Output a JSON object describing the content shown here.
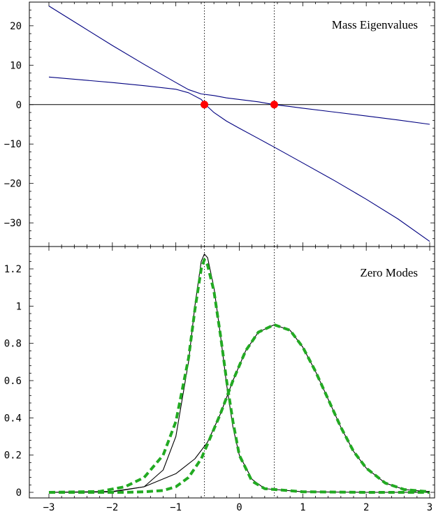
{
  "chart_data": [
    {
      "type": "line",
      "title": "Mass Eigenvalues",
      "xlim": [
        -3,
        3
      ],
      "ylim": [
        -36,
        26
      ],
      "x_ticks": [
        "−3",
        "−2",
        "−1",
        "0",
        "1",
        "2",
        "3"
      ],
      "y_ticks": [
        {
          "value": 20,
          "label": "20"
        },
        {
          "value": 10,
          "label": "10"
        },
        {
          "value": 0,
          "label": "0"
        },
        {
          "value": -10,
          "label": "−10"
        },
        {
          "value": -20,
          "label": "−20"
        },
        {
          "value": -30,
          "label": "−30"
        }
      ],
      "vertical_reference_lines": [
        -0.55,
        0.55
      ],
      "zero_line": true,
      "series": [
        {
          "color": "#000080",
          "x": [
            -3,
            -2,
            -1.5,
            -1,
            -0.8,
            -0.6,
            -0.5,
            -0.4,
            -0.2,
            0,
            0.3,
            0.55,
            1,
            1.5,
            2,
            2.5,
            3
          ],
          "values": [
            7,
            5.6,
            4.8,
            3.9,
            3.0,
            1.3,
            -0.5,
            -2.0,
            -4.2,
            -6.0,
            -8.6,
            -10.8,
            -14.8,
            -19.3,
            -24,
            -29,
            -34.7
          ]
        },
        {
          "color": "#000080",
          "x": [
            -3,
            -2.5,
            -2,
            -1.5,
            -1,
            -0.8,
            -0.6,
            -0.4,
            -0.2,
            0,
            0.3,
            0.55,
            0.8,
            1,
            1.5,
            2,
            2.5,
            3
          ],
          "values": [
            25,
            20,
            15,
            10.2,
            5.6,
            3.8,
            2.7,
            2.3,
            1.7,
            1.3,
            0.7,
            0,
            -0.5,
            -0.9,
            -1.9,
            -2.9,
            -3.9,
            -5
          ]
        }
      ],
      "markers": [
        {
          "x": -0.55,
          "y": 0,
          "color": "#ff0000"
        },
        {
          "x": 0.55,
          "y": 0,
          "color": "#ff0000"
        }
      ]
    },
    {
      "type": "line",
      "title": "Zero  Modes",
      "xlim": [
        -3,
        3
      ],
      "ylim": [
        -0.03,
        1.32
      ],
      "x_ticks": [
        "−3",
        "−2",
        "−1",
        "0",
        "1",
        "2",
        "3"
      ],
      "y_ticks": [
        {
          "value": 1.2,
          "label": "1.2"
        },
        {
          "value": 1.0,
          "label": "1"
        },
        {
          "value": 0.8,
          "label": "0.8"
        },
        {
          "value": 0.6,
          "label": "0.6"
        },
        {
          "value": 0.4,
          "label": "0.4"
        },
        {
          "value": 0.2,
          "label": "0.2"
        },
        {
          "value": 0.0,
          "label": "0"
        }
      ],
      "vertical_reference_lines": [
        -0.55,
        0.55
      ],
      "series": [
        {
          "style": "solid",
          "color": "#000000",
          "x": [
            -3,
            -2,
            -1.5,
            -1.2,
            -1,
            -0.8,
            -0.7,
            -0.6,
            -0.55,
            -0.5,
            -0.4,
            -0.3,
            -0.2,
            -0.1,
            0,
            0.2,
            0.4,
            1,
            2,
            3
          ],
          "values": [
            0,
            0.002,
            0.03,
            0.12,
            0.3,
            0.7,
            1.0,
            1.24,
            1.28,
            1.26,
            1.1,
            0.85,
            0.58,
            0.35,
            0.2,
            0.07,
            0.02,
            0.003,
            0,
            0
          ]
        },
        {
          "style": "dashed",
          "color": "#22aa22",
          "x": [
            -3,
            -2.2,
            -1.8,
            -1.5,
            -1.2,
            -1.0,
            -0.8,
            -0.7,
            -0.6,
            -0.55,
            -0.5,
            -0.4,
            -0.3,
            -0.2,
            -0.1,
            0,
            0.2,
            0.4,
            1,
            2,
            3
          ],
          "values": [
            0,
            0.005,
            0.03,
            0.08,
            0.2,
            0.38,
            0.72,
            0.98,
            1.2,
            1.25,
            1.22,
            1.08,
            0.85,
            0.6,
            0.38,
            0.2,
            0.06,
            0.02,
            0.003,
            0,
            0
          ]
        },
        {
          "style": "solid",
          "color": "#000000",
          "x": [
            -3,
            -2,
            -1.5,
            -1,
            -0.7,
            -0.5,
            -0.3,
            -0.1,
            0.1,
            0.3,
            0.55,
            0.8,
            1.0,
            1.2,
            1.4,
            1.6,
            1.8,
            2.0,
            2.3,
            2.6,
            3
          ],
          "values": [
            0,
            0.005,
            0.03,
            0.1,
            0.18,
            0.27,
            0.42,
            0.6,
            0.76,
            0.86,
            0.9,
            0.87,
            0.78,
            0.65,
            0.5,
            0.35,
            0.22,
            0.13,
            0.05,
            0.015,
            0.003
          ]
        },
        {
          "style": "dashed",
          "color": "#22aa22",
          "x": [
            -3,
            -2.2,
            -1.8,
            -1.5,
            -1.2,
            -1.0,
            -0.8,
            -0.6,
            -0.5,
            -0.3,
            -0.1,
            0.1,
            0.3,
            0.55,
            0.8,
            1.0,
            1.2,
            1.4,
            1.6,
            1.8,
            2.0,
            2.3,
            2.6,
            3
          ],
          "values": [
            0,
            0,
            0,
            0.003,
            0.01,
            0.03,
            0.08,
            0.18,
            0.26,
            0.42,
            0.6,
            0.76,
            0.86,
            0.9,
            0.87,
            0.78,
            0.65,
            0.5,
            0.35,
            0.22,
            0.13,
            0.05,
            0.015,
            0.003
          ]
        }
      ]
    }
  ]
}
